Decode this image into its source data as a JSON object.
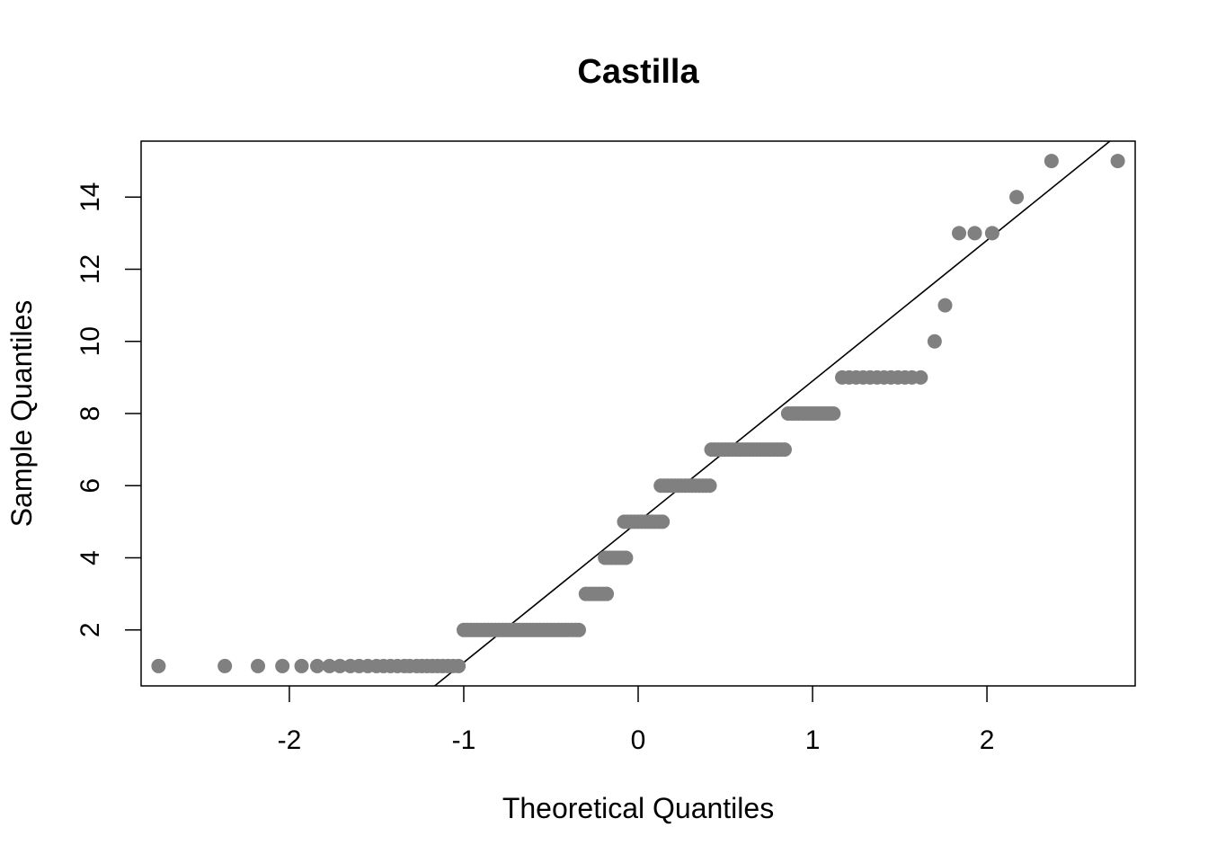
{
  "chart_data": {
    "type": "scatter",
    "title": "Castilla",
    "xlabel": "Theoretical Quantiles",
    "ylabel": "Sample Quantiles",
    "xlim": [
      -2.85,
      2.85
    ],
    "ylim": [
      0.45,
      15.55
    ],
    "xticks": [
      -2,
      -1,
      0,
      1,
      2
    ],
    "xtick_labels": [
      "-2",
      "-1",
      "0",
      "1",
      "2"
    ],
    "yticks": [
      2,
      4,
      6,
      8,
      10,
      12,
      14
    ],
    "ytick_labels": [
      "2",
      "4",
      "6",
      "8",
      "10",
      "12",
      "14"
    ],
    "point_color": "#808080",
    "line_color": "#000000",
    "reference_line": {
      "intercept": 5.0,
      "slope": 3.9
    },
    "groups": [
      {
        "y": 1,
        "x": [
          -2.75,
          -2.37,
          -2.18,
          -2.04,
          -1.93,
          -1.84,
          -1.77,
          -1.71,
          -1.65,
          -1.6,
          -1.55,
          -1.5,
          -1.46,
          -1.42,
          -1.38,
          -1.34,
          -1.31,
          -1.27,
          -1.24,
          -1.21,
          -1.18,
          -1.15,
          -1.12,
          -1.09,
          -1.06,
          -1.03
        ]
      },
      {
        "y": 2,
        "x": [
          -1.0,
          -0.98,
          -0.96,
          -0.94,
          -0.92,
          -0.9,
          -0.88,
          -0.86,
          -0.84,
          -0.82,
          -0.8,
          -0.78,
          -0.76,
          -0.74,
          -0.72,
          -0.7,
          -0.68,
          -0.66,
          -0.64,
          -0.62,
          -0.6,
          -0.58,
          -0.56,
          -0.54,
          -0.52,
          -0.5,
          -0.48,
          -0.46,
          -0.44,
          -0.42,
          -0.4,
          -0.38,
          -0.36,
          -0.34
        ]
      },
      {
        "y": 3,
        "x": [
          -0.3,
          -0.28,
          -0.26,
          -0.24,
          -0.22,
          -0.2,
          -0.18
        ]
      },
      {
        "y": 4,
        "x": [
          -0.19,
          -0.17,
          -0.15,
          -0.13,
          -0.11,
          -0.09,
          -0.07
        ]
      },
      {
        "y": 5,
        "x": [
          -0.08,
          -0.06,
          -0.04,
          -0.02,
          0.0,
          0.02,
          0.04,
          0.06,
          0.08,
          0.1,
          0.12,
          0.14
        ]
      },
      {
        "y": 6,
        "x": [
          0.13,
          0.15,
          0.17,
          0.19,
          0.21,
          0.23,
          0.25,
          0.27,
          0.29,
          0.31,
          0.33,
          0.35,
          0.37,
          0.39,
          0.41
        ]
      },
      {
        "y": 7,
        "x": [
          0.42,
          0.44,
          0.46,
          0.48,
          0.5,
          0.52,
          0.54,
          0.56,
          0.58,
          0.6,
          0.62,
          0.64,
          0.66,
          0.68,
          0.7,
          0.72,
          0.74,
          0.76,
          0.78,
          0.8,
          0.82,
          0.84
        ]
      },
      {
        "y": 8,
        "x": [
          0.86,
          0.88,
          0.9,
          0.92,
          0.94,
          0.96,
          0.98,
          1.0,
          1.02,
          1.04,
          1.06,
          1.08,
          1.1,
          1.12
        ]
      },
      {
        "y": 9,
        "x": [
          1.17,
          1.21,
          1.25,
          1.29,
          1.33,
          1.37,
          1.41,
          1.45,
          1.49,
          1.53,
          1.57,
          1.62
        ]
      },
      {
        "y": 10,
        "x": [
          1.7
        ]
      },
      {
        "y": 11,
        "x": [
          1.76
        ]
      },
      {
        "y": 13,
        "x": [
          1.84,
          1.93,
          2.03
        ]
      },
      {
        "y": 14,
        "x": [
          2.17
        ]
      },
      {
        "y": 15,
        "x": [
          2.37,
          2.75
        ]
      }
    ]
  }
}
